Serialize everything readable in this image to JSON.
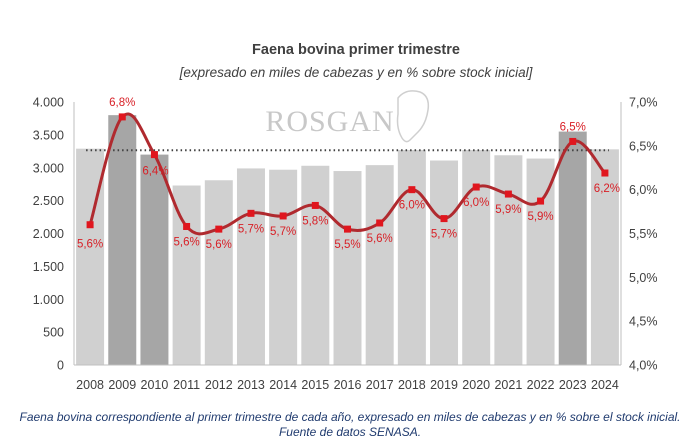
{
  "chart_data": {
    "type": "bar",
    "title": "Faena bovina primer trimestre",
    "subtitle": "[expresado en miles de cabezas y en % sobre stock inicial]",
    "categories": [
      "2008",
      "2009",
      "2010",
      "2011",
      "2012",
      "2013",
      "2014",
      "2015",
      "2016",
      "2017",
      "2018",
      "2019",
      "2020",
      "2021",
      "2022",
      "2023",
      "2024"
    ],
    "series": [
      {
        "type": "bar",
        "axis": "left",
        "values": [
          3290,
          3800,
          3200,
          2730,
          2810,
          2990,
          2970,
          3030,
          2950,
          3040,
          3270,
          3110,
          3270,
          3190,
          3140,
          3550,
          3280
        ],
        "colors": [
          "#d0d0d0",
          "#a6a6a6",
          "#a6a6a6",
          "#d0d0d0",
          "#d0d0d0",
          "#d0d0d0",
          "#d0d0d0",
          "#d0d0d0",
          "#d0d0d0",
          "#d0d0d0",
          "#d0d0d0",
          "#d0d0d0",
          "#d0d0d0",
          "#d0d0d0",
          "#d0d0d0",
          "#a6a6a6",
          "#d0d0d0"
        ]
      },
      {
        "type": "line",
        "axis": "right",
        "values": [
          5.6,
          6.83,
          6.4,
          5.58,
          5.55,
          5.73,
          5.7,
          5.82,
          5.55,
          5.62,
          6.0,
          5.67,
          6.03,
          5.95,
          5.87,
          6.55,
          6.19
        ],
        "labels": [
          "5,6%",
          "6,8%",
          "6,4%",
          "5,6%",
          "5,6%",
          "5,7%",
          "5,7%",
          "5,8%",
          "5,5%",
          "5,6%",
          "6,0%",
          "5,7%",
          "6,0%",
          "5,9%",
          "5,9%",
          "6,5%",
          "6,2%"
        ],
        "color": "#b02a2f",
        "marker_color": "#e0161e"
      }
    ],
    "reference_line": {
      "axis": "right",
      "value": 6.45,
      "style": "dotted",
      "color": "#404040"
    },
    "y_left": {
      "ylim": [
        0,
        4000
      ],
      "ticks": [
        0,
        500,
        1000,
        1500,
        2000,
        2500,
        3000,
        3500,
        4000
      ],
      "tick_labels": [
        "0",
        "500",
        "1.000",
        "1.500",
        "2.000",
        "2.500",
        "3.000",
        "3.500",
        "4.000"
      ]
    },
    "y_right": {
      "ylim": [
        4.0,
        7.0
      ],
      "ticks": [
        4.0,
        4.5,
        5.0,
        5.5,
        6.0,
        6.5,
        7.0
      ],
      "tick_labels": [
        "4,0%",
        "4,5%",
        "5,0%",
        "5,5%",
        "6,0%",
        "6,5%",
        "7,0%"
      ]
    },
    "grid": false,
    "watermark": "ROSGAN"
  },
  "caption": "Faena bovina correspondiente al primer trimestre de cada año, expresado en miles de cabezas y en % sobre el stock inicial. Fuente de datos SENASA."
}
